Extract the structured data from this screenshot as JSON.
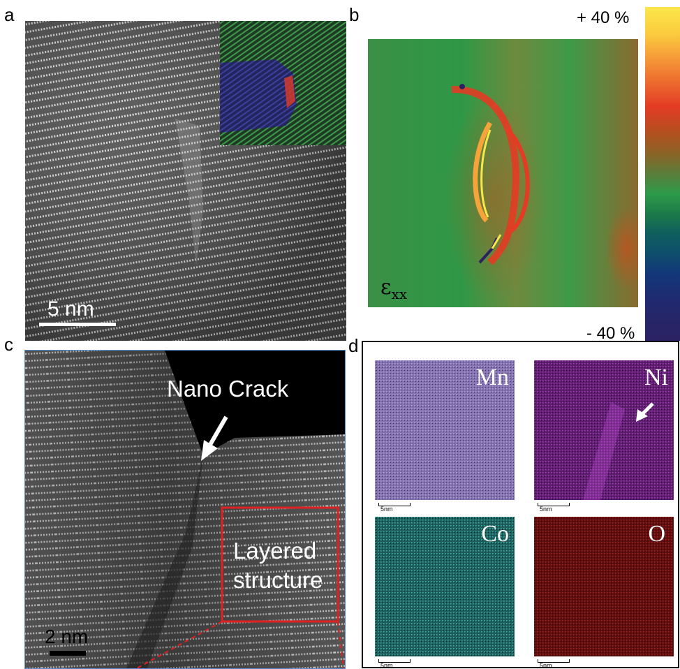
{
  "panels": {
    "a": {
      "letter": "a",
      "scale_bar": "5 nm",
      "colors": {
        "lattice_bg": "#4c4c4c",
        "lattice_line": "#e6e6e6",
        "inset_green": "#2f7f3b",
        "inset_blue": "#3a3f9a",
        "inset_red": "#e04a2a"
      }
    },
    "b": {
      "letter": "b",
      "colorbar_max": "+ 40 %",
      "colorbar_min": "- 40 %",
      "strain_symbol": "ε",
      "strain_subscript": "xx",
      "colors": {
        "field": "#3e9a49",
        "hot": "#e33b24",
        "peak": "#fbe64a",
        "cold": "#2b2262"
      }
    },
    "c": {
      "letter": "c",
      "crack_label": "Nano Crack",
      "box_label_line1": "Layered",
      "box_label_line2": "structure",
      "scale_bar": "2 nm",
      "colors": {
        "box": "#e02020",
        "dark_region": "#000000"
      }
    },
    "d": {
      "letter": "d",
      "maps": [
        {
          "element": "Mn",
          "scale": "5nm",
          "color": "#9a86c8"
        },
        {
          "element": "Ni",
          "scale": "5nm",
          "color": "#7a2d8e"
        },
        {
          "element": "Co",
          "scale": "5nm",
          "color": "#2c8a86"
        },
        {
          "element": "O",
          "scale": "5nm",
          "color": "#7a1414"
        }
      ]
    }
  }
}
